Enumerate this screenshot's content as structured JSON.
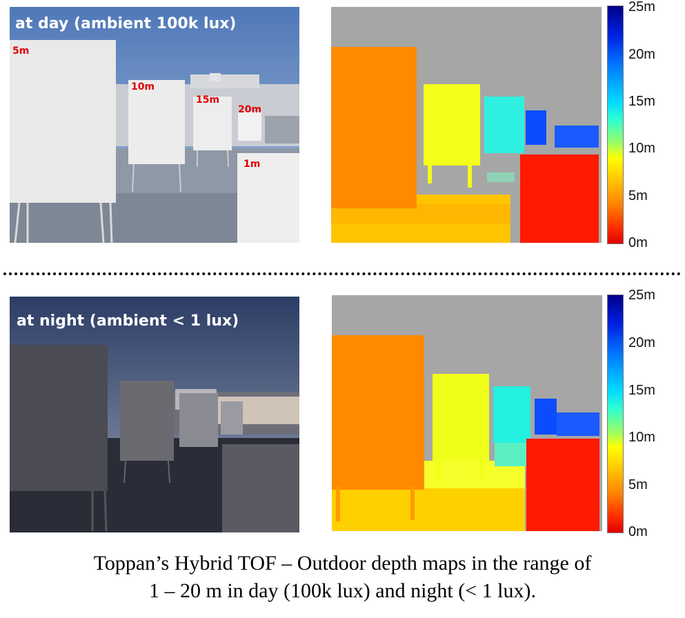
{
  "day": {
    "label": "at day (ambient 100k lux)",
    "distances": [
      "5m",
      "10m",
      "15m",
      "20m",
      "1m"
    ]
  },
  "night": {
    "label": "at night (ambient < 1 lux)"
  },
  "colorbar": {
    "ticks": [
      "25m",
      "20m",
      "15m",
      "10m",
      "5m",
      "0m"
    ]
  },
  "caption": {
    "line1": "Toppan’s Hybrid TOF –  Outdoor depth maps in the range of",
    "line2": "1 – 20 m in day (100k lux) and night (< 1 lux)."
  }
}
